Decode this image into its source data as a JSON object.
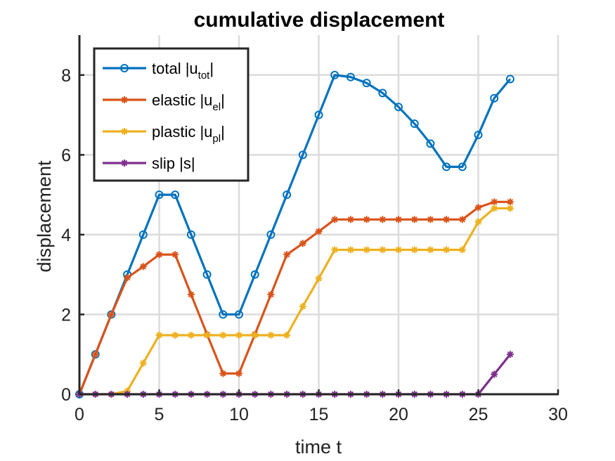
{
  "chart_data": {
    "type": "line",
    "title": "cumulative displacement",
    "xlabel": "time t",
    "ylabel": "displacement",
    "xlim": [
      0,
      30
    ],
    "ylim": [
      0,
      9
    ],
    "xticks": [
      0,
      5,
      10,
      15,
      20,
      25,
      30
    ],
    "yticks": [
      0,
      2,
      4,
      6,
      8
    ],
    "xtick_labels": [
      "0",
      "5",
      "10",
      "15",
      "20",
      "25",
      "30"
    ],
    "ytick_labels": [
      "0",
      "2",
      "4",
      "6",
      "8"
    ],
    "grid": true,
    "legend_position": "top-left",
    "x": [
      0,
      1,
      2,
      3,
      4,
      5,
      6,
      7,
      8,
      9,
      10,
      11,
      12,
      13,
      14,
      15,
      16,
      17,
      18,
      19,
      20,
      21,
      22,
      23,
      24,
      25,
      26,
      27
    ],
    "series": [
      {
        "label_main": "total |u",
        "label_sub": "tot",
        "label_end": "|",
        "color": "#0072BD",
        "marker": "circle",
        "values": [
          0,
          1,
          2,
          3,
          4,
          5,
          5,
          4,
          3,
          2,
          2,
          3,
          4,
          5,
          6,
          7,
          8,
          7.95,
          7.8,
          7.55,
          7.2,
          6.78,
          6.28,
          5.7,
          5.7,
          6.5,
          7.42,
          7.9
        ]
      },
      {
        "label_main": "elastic |u",
        "label_sub": "el",
        "label_end": "|",
        "color": "#D95319",
        "marker": "asterisk",
        "values": [
          0,
          1,
          2,
          2.92,
          3.2,
          3.5,
          3.5,
          2.5,
          1.5,
          0.52,
          0.52,
          1.5,
          2.5,
          3.5,
          3.78,
          4.08,
          4.38,
          4.38,
          4.38,
          4.38,
          4.38,
          4.38,
          4.38,
          4.38,
          4.38,
          4.68,
          4.82,
          4.82
        ]
      },
      {
        "label_main": "plastic |u",
        "label_sub": "pl",
        "label_end": "|",
        "color": "#EDB120",
        "marker": "asterisk",
        "values": [
          0,
          0,
          0,
          0.08,
          0.78,
          1.48,
          1.48,
          1.48,
          1.48,
          1.48,
          1.48,
          1.48,
          1.48,
          1.48,
          2.2,
          2.9,
          3.62,
          3.62,
          3.62,
          3.62,
          3.62,
          3.62,
          3.62,
          3.62,
          3.62,
          4.32,
          4.66,
          4.66
        ]
      },
      {
        "label_main": "slip |s|",
        "label_sub": "",
        "label_end": "",
        "color": "#7E2F8E",
        "marker": "asterisk",
        "values": [
          0,
          0,
          0,
          0,
          0,
          0,
          0,
          0,
          0,
          0,
          0,
          0,
          0,
          0,
          0,
          0,
          0,
          0,
          0,
          0,
          0,
          0,
          0,
          0,
          0,
          0,
          0.5,
          1.0
        ]
      }
    ]
  }
}
